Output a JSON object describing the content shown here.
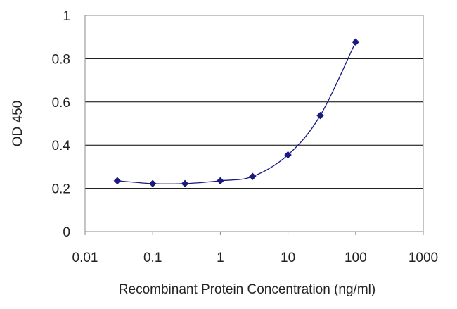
{
  "chart_data": {
    "type": "scatter",
    "title": "",
    "xlabel": "Recombinant Protein Concentration (ng/ml)",
    "ylabel": "OD 450",
    "x_scale": "log",
    "xlim": [
      0.01,
      1000
    ],
    "ylim": [
      0,
      1
    ],
    "x_ticks": [
      "0.01",
      "0.1",
      "1",
      "10",
      "100",
      "1000"
    ],
    "y_ticks": [
      "0",
      "0.2",
      "0.4",
      "0.6",
      "0.8",
      "1"
    ],
    "grid": "horizontal",
    "legend": "none",
    "series": [
      {
        "x": [
          0.03,
          0.1,
          0.3,
          1,
          3,
          10,
          30,
          100
        ],
        "y": [
          0.235,
          0.222,
          0.222,
          0.235,
          0.255,
          0.355,
          0.537,
          0.877
        ],
        "marker": "diamond",
        "line": "smooth",
        "color": "#1a1a80"
      }
    ]
  },
  "colors": {
    "grid": "#000000",
    "frame": "#8a8a8a",
    "series": "#1a1a80"
  }
}
